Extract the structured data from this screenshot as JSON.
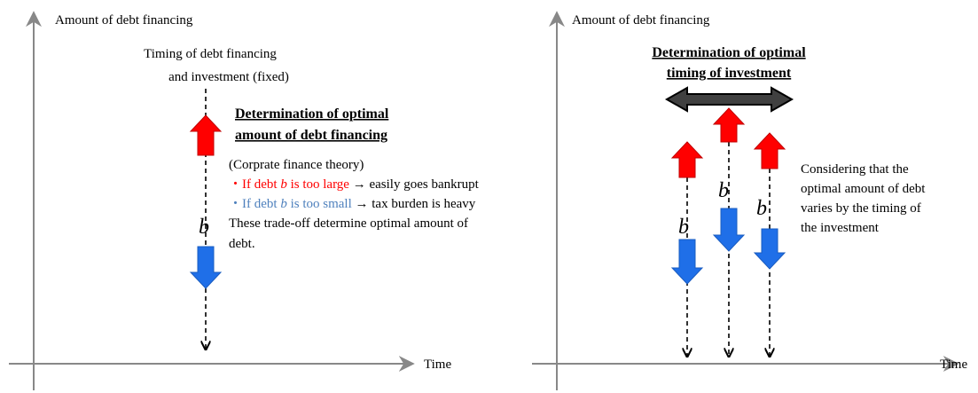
{
  "left": {
    "y_axis_label": "Amount of debt financing",
    "x_axis_label": "Time",
    "timing_label": [
      "Timing of debt financing",
      "and investment (fixed)"
    ],
    "heading": [
      "Determination of optimal",
      "amount of debt financing"
    ],
    "theory": "(Corprate finance theory)",
    "bullet_large": [
      "・If debt ",
      "b",
      " is too large",
      " → easily goes bankrupt"
    ],
    "bullet_small": [
      "・If debt ",
      "b",
      " is too small",
      " → tax burden is heavy"
    ],
    "conclusion": [
      "These trade-off determine optimal amount of",
      "debt."
    ],
    "variable": "b"
  },
  "right": {
    "y_axis_label": "Amount of debt financing",
    "x_axis_label": "Time",
    "heading": [
      "Determination of optimal",
      "timing of investment"
    ],
    "variables": [
      "b",
      "b",
      "b"
    ],
    "note": [
      "Considering that the",
      "optimal amount of debt",
      "varies by the timing of",
      "the investment"
    ]
  }
}
